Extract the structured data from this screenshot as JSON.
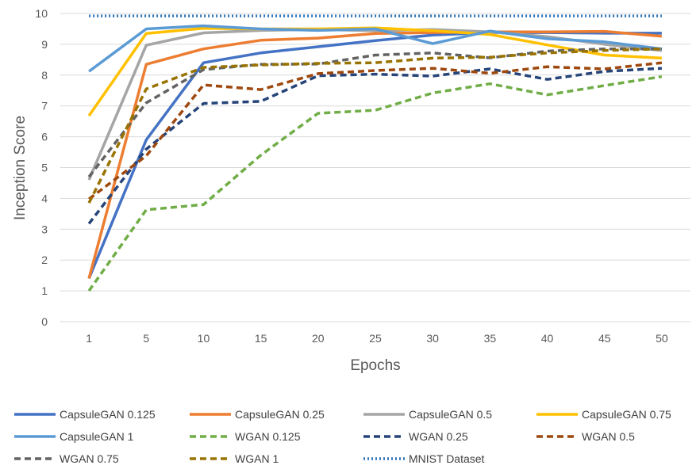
{
  "chart_data": {
    "type": "line",
    "title": "",
    "xlabel": "Epochs",
    "ylabel": "Inception Score",
    "categories": [
      "1",
      "5",
      "10",
      "15",
      "20",
      "25",
      "30",
      "35",
      "40",
      "45",
      "50"
    ],
    "ylim": [
      0,
      10
    ],
    "yticks": [
      "0",
      "1",
      "2",
      "3",
      "4",
      "5",
      "6",
      "7",
      "8",
      "9",
      "10"
    ],
    "grid": "horizontal",
    "legend_position": "bottom",
    "series": [
      {
        "name": "CapsuleGAN 0.125",
        "color": "#4472c4",
        "style": "solid",
        "values": [
          1.4,
          5.9,
          8.4,
          8.72,
          8.92,
          9.12,
          9.3,
          9.38,
          9.38,
          9.36,
          9.36
        ]
      },
      {
        "name": "CapsuleGAN 0.25",
        "color": "#ed7d31",
        "style": "solid",
        "values": [
          1.4,
          8.35,
          8.85,
          9.13,
          9.2,
          9.35,
          9.38,
          9.4,
          9.4,
          9.42,
          9.26
        ]
      },
      {
        "name": "CapsuleGAN 0.5",
        "color": "#a5a5a5",
        "style": "solid",
        "values": [
          4.6,
          8.97,
          9.37,
          9.45,
          9.48,
          9.44,
          9.48,
          9.4,
          9.25,
          9.0,
          8.8
        ]
      },
      {
        "name": "CapsuleGAN 0.75",
        "color": "#ffc000",
        "style": "solid",
        "values": [
          6.68,
          9.35,
          9.52,
          9.5,
          9.5,
          9.53,
          9.44,
          9.32,
          8.98,
          8.65,
          8.55
        ]
      },
      {
        "name": "CapsuleGAN 1",
        "color": "#5b9bd5",
        "style": "solid",
        "values": [
          8.12,
          9.5,
          9.6,
          9.5,
          9.45,
          9.5,
          9.02,
          9.43,
          9.18,
          9.08,
          8.85
        ]
      },
      {
        "name": "WGAN 0.125",
        "color": "#70ad47",
        "style": "dash",
        "values": [
          1.0,
          3.63,
          3.8,
          5.4,
          6.76,
          6.86,
          7.42,
          7.72,
          7.36,
          7.66,
          7.95
        ]
      },
      {
        "name": "WGAN 0.25",
        "color": "#264478",
        "style": "dash",
        "values": [
          3.18,
          5.6,
          7.08,
          7.15,
          7.98,
          8.03,
          7.97,
          8.2,
          7.86,
          8.12,
          8.22
        ]
      },
      {
        "name": "WGAN 0.5",
        "color": "#9e480e",
        "style": "dash",
        "values": [
          3.98,
          5.38,
          7.68,
          7.53,
          8.05,
          8.15,
          8.22,
          8.06,
          8.27,
          8.2,
          8.4
        ]
      },
      {
        "name": "WGAN 0.75",
        "color": "#636363",
        "style": "dash",
        "values": [
          4.7,
          7.1,
          8.18,
          8.35,
          8.36,
          8.65,
          8.72,
          8.56,
          8.78,
          8.85,
          8.85
        ]
      },
      {
        "name": "WGAN 1",
        "color": "#997300",
        "style": "dash",
        "values": [
          3.85,
          7.55,
          8.25,
          8.33,
          8.38,
          8.4,
          8.55,
          8.58,
          8.72,
          8.8,
          8.85
        ]
      },
      {
        "name": "MNIST Dataset",
        "color": "#2e75b6",
        "style": "dot",
        "values": [
          9.92,
          9.92,
          9.92,
          9.92,
          9.92,
          9.92,
          9.92,
          9.92,
          9.92,
          9.92,
          9.92
        ]
      }
    ]
  }
}
